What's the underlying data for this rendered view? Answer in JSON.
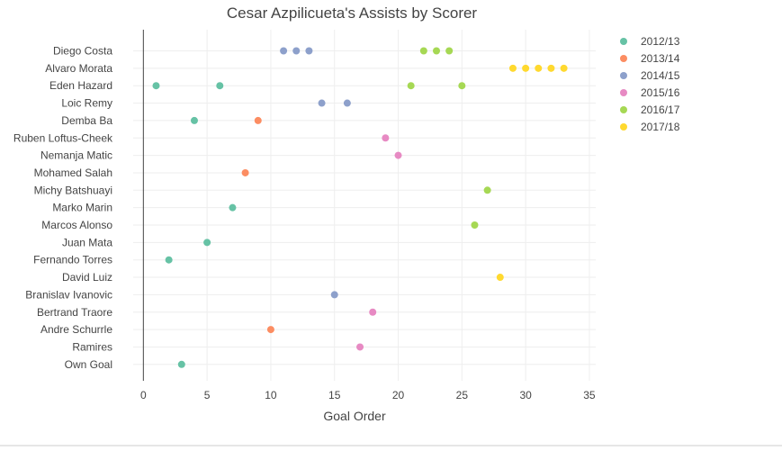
{
  "chart_data": {
    "type": "scatter",
    "title": "Cesar Azpilicueta's Assists by Scorer",
    "xlabel": "Goal Order",
    "ylabel": "",
    "xlim": [
      -0.8,
      35.5
    ],
    "xticks": [
      0,
      5,
      10,
      15,
      20,
      25,
      30,
      35
    ],
    "grid": true,
    "legend_position": "top-right",
    "categories": [
      "Diego Costa",
      "Alvaro Morata",
      "Eden Hazard",
      "Loic Remy",
      "Demba Ba",
      "Ruben Loftus-Cheek",
      "Nemanja Matic",
      "Mohamed Salah",
      "Michy Batshuayi",
      "Marko Marin",
      "Marcos Alonso",
      "Juan Mata",
      "Fernando Torres",
      "David Luiz",
      "Branislav Ivanovic",
      "Bertrand Traore",
      "Andre Schurrle",
      "Ramires",
      "Own Goal"
    ],
    "series": [
      {
        "name": "2012/13",
        "color": "#66c2a5",
        "points": [
          {
            "x": 1,
            "y": "Eden Hazard"
          },
          {
            "x": 2,
            "y": "Fernando Torres"
          },
          {
            "x": 3,
            "y": "Own Goal"
          },
          {
            "x": 4,
            "y": "Demba Ba"
          },
          {
            "x": 5,
            "y": "Juan Mata"
          },
          {
            "x": 6,
            "y": "Eden Hazard"
          },
          {
            "x": 7,
            "y": "Marko Marin"
          }
        ]
      },
      {
        "name": "2013/14",
        "color": "#fc8d62",
        "points": [
          {
            "x": 8,
            "y": "Mohamed Salah"
          },
          {
            "x": 9,
            "y": "Demba Ba"
          },
          {
            "x": 10,
            "y": "Andre Schurrle"
          }
        ]
      },
      {
        "name": "2014/15",
        "color": "#8da0cb",
        "points": [
          {
            "x": 11,
            "y": "Diego Costa"
          },
          {
            "x": 12,
            "y": "Diego Costa"
          },
          {
            "x": 13,
            "y": "Diego Costa"
          },
          {
            "x": 14,
            "y": "Loic Remy"
          },
          {
            "x": 15,
            "y": "Branislav Ivanovic"
          },
          {
            "x": 16,
            "y": "Loic Remy"
          }
        ]
      },
      {
        "name": "2015/16",
        "color": "#e78ac3",
        "points": [
          {
            "x": 17,
            "y": "Ramires"
          },
          {
            "x": 18,
            "y": "Bertrand Traore"
          },
          {
            "x": 19,
            "y": "Ruben Loftus-Cheek"
          },
          {
            "x": 20,
            "y": "Nemanja Matic"
          }
        ]
      },
      {
        "name": "2016/17",
        "color": "#a6d854",
        "points": [
          {
            "x": 21,
            "y": "Eden Hazard"
          },
          {
            "x": 22,
            "y": "Diego Costa"
          },
          {
            "x": 23,
            "y": "Diego Costa"
          },
          {
            "x": 24,
            "y": "Diego Costa"
          },
          {
            "x": 25,
            "y": "Eden Hazard"
          },
          {
            "x": 26,
            "y": "Marcos Alonso"
          },
          {
            "x": 27,
            "y": "Michy Batshuayi"
          }
        ]
      },
      {
        "name": "2017/18",
        "color": "#ffd92f",
        "points": [
          {
            "x": 28,
            "y": "David Luiz"
          },
          {
            "x": 29,
            "y": "Alvaro Morata"
          },
          {
            "x": 30,
            "y": "Alvaro Morata"
          },
          {
            "x": 31,
            "y": "Alvaro Morata"
          },
          {
            "x": 32,
            "y": "Alvaro Morata"
          },
          {
            "x": 33,
            "y": "Alvaro Morata"
          }
        ]
      }
    ]
  }
}
